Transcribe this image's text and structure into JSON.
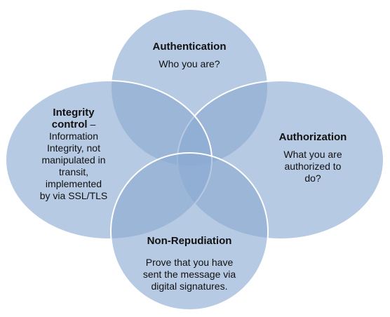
{
  "diagram": {
    "circles": [
      {
        "id": "authentication",
        "title": "Authentication",
        "suffix": "",
        "lines": [
          "Who you are?"
        ]
      },
      {
        "id": "authorization",
        "title": "Authorization",
        "suffix": "",
        "lines": [
          "What you are",
          "authorized to",
          "do?"
        ]
      },
      {
        "id": "integrity",
        "title_line1": "Integrity",
        "title_line2": "control",
        "suffix": " –",
        "lines": [
          "Information",
          "Integrity, not",
          "manipulated in",
          "transit,",
          "implemented",
          "by via SSL/TLS"
        ]
      },
      {
        "id": "non-repudiation",
        "title": "Non-Repudiation",
        "suffix": "",
        "lines": [
          "Prove that you have",
          "sent the message via",
          "digital signatures."
        ]
      }
    ],
    "colors": {
      "fill": "#8aa9d2",
      "stroke": "#ffffff"
    }
  }
}
